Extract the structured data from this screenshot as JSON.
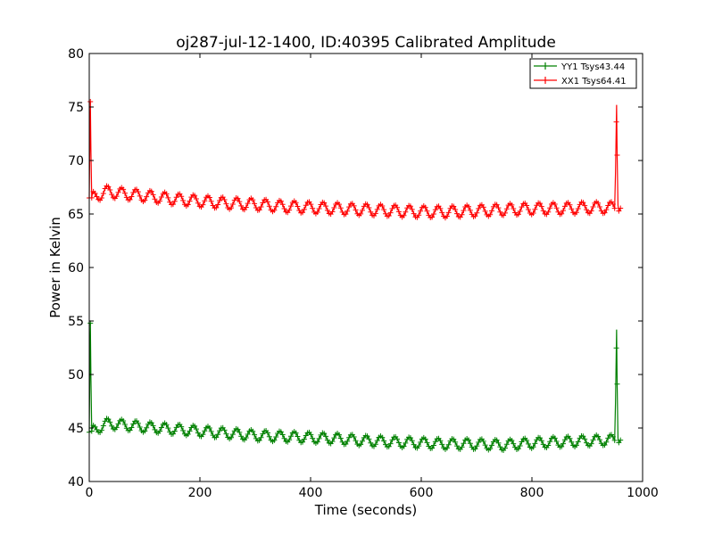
{
  "chart_data": {
    "type": "line",
    "title": "oj287-jul-12-1400, ID:40395 Calibrated Amplitude",
    "xlabel": "Time (seconds)",
    "ylabel": "Power in Kelvin",
    "xlim": [
      0,
      1000
    ],
    "ylim": [
      40,
      80
    ],
    "xticks": [
      0,
      200,
      400,
      600,
      800,
      1000
    ],
    "yticks": [
      40,
      45,
      50,
      55,
      60,
      65,
      70,
      75,
      80
    ],
    "xtick_labels": [
      "0",
      "200",
      "400",
      "600",
      "800",
      "1000"
    ],
    "ytick_labels": [
      "40",
      "45",
      "50",
      "55",
      "60",
      "65",
      "70",
      "75",
      "80"
    ],
    "grid": false,
    "legend_position": "top-right",
    "series": [
      {
        "name": "YY1 Tsys43.44",
        "color": "#008000",
        "marker": "plus",
        "x": [
          0,
          2,
          4,
          10,
          30,
          60,
          100,
          150,
          200,
          250,
          300,
          350,
          400,
          450,
          500,
          550,
          600,
          650,
          700,
          750,
          800,
          850,
          900,
          950,
          953,
          955,
          956,
          960
        ],
        "y": [
          44.6,
          54.8,
          44.7,
          44.8,
          45.4,
          45.3,
          45.1,
          44.9,
          44.7,
          44.5,
          44.3,
          44.2,
          44.1,
          44.0,
          43.8,
          43.7,
          43.6,
          43.5,
          43.5,
          43.4,
          43.6,
          43.7,
          43.8,
          43.9,
          54.2,
          44.0,
          44.1,
          44.1
        ],
        "oscillation_amplitude": 0.5,
        "oscillation_period": 26
      },
      {
        "name": "XX1 Tsys64.41",
        "color": "#ff0000",
        "marker": "plus",
        "x": [
          0,
          2,
          4,
          10,
          30,
          60,
          100,
          150,
          200,
          250,
          300,
          350,
          400,
          450,
          500,
          550,
          600,
          650,
          700,
          750,
          800,
          850,
          900,
          950,
          953,
          955,
          956,
          960
        ],
        "y": [
          66.5,
          75.5,
          66.5,
          66.6,
          67.1,
          66.9,
          66.7,
          66.4,
          66.2,
          66.0,
          65.9,
          65.7,
          65.6,
          65.5,
          65.4,
          65.3,
          65.2,
          65.2,
          65.3,
          65.4,
          65.5,
          65.5,
          65.6,
          65.6,
          75.2,
          65.8,
          65.8,
          65.8
        ],
        "oscillation_amplitude": 0.55,
        "oscillation_period": 26
      }
    ]
  }
}
